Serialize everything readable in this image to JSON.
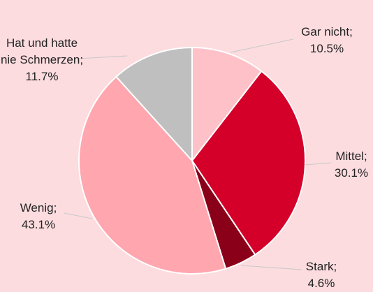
{
  "chart_data": {
    "type": "pie",
    "categories": [
      "Gar nicht;",
      "Mittel;",
      "Stark;",
      "Wenig;",
      "Hat und hatte nie Schmerzen;"
    ],
    "values": [
      10.5,
      30.1,
      4.6,
      43.1,
      11.7
    ],
    "value_labels": [
      "10.5%",
      "30.1%",
      "4.6%",
      "43.1%",
      "11.7%"
    ],
    "colors": [
      "#ffc1c8",
      "#d4002a",
      "#8a0019",
      "#ffa6af",
      "#bfbfbf"
    ]
  }
}
